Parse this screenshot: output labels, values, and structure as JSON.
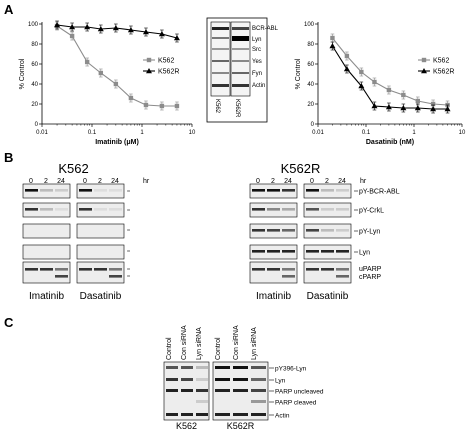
{
  "panel_labels": {
    "a": "A",
    "b": "B",
    "c": "C"
  },
  "chart_data": [
    {
      "type": "line",
      "name": "imatinib-chart",
      "xscale": "log",
      "xlim": [
        0.01,
        10
      ],
      "ylim": [
        0,
        100
      ],
      "xticks": [
        0.01,
        0.1,
        1,
        10
      ],
      "xtick_labels": [
        "0.01",
        "0.1",
        "1",
        "10"
      ],
      "yticks": [
        0,
        20,
        40,
        60,
        80,
        100
      ],
      "ytick_labels": [
        "0",
        "20",
        "40",
        "60",
        "80",
        "100"
      ],
      "ylabel": "% Control",
      "xlabel_main": "Imatinib",
      "xlabel_unit": "(μM)",
      "legend_position": "right",
      "series": [
        {
          "name": "K562",
          "marker": "square",
          "color": "#8c8c8c",
          "x": [
            0.02,
            0.04,
            0.08,
            0.15,
            0.3,
            0.6,
            1.2,
            2.5,
            5
          ],
          "y": [
            98,
            88,
            62,
            51,
            40,
            26,
            19,
            18,
            18
          ]
        },
        {
          "name": "K562R",
          "marker": "triangle",
          "color": "#000000",
          "x": [
            0.02,
            0.04,
            0.08,
            0.15,
            0.3,
            0.6,
            1.2,
            2.5,
            5
          ],
          "y": [
            99,
            97,
            97,
            95,
            96,
            94,
            92,
            90,
            86
          ]
        }
      ]
    },
    {
      "type": "line",
      "name": "dasatinib-chart",
      "xscale": "log",
      "xlim": [
        0.01,
        10
      ],
      "ylim": [
        0,
        100
      ],
      "xticks": [
        0.01,
        0.1,
        1,
        10
      ],
      "xtick_labels": [
        "0.01",
        "0.1",
        "1",
        "10"
      ],
      "yticks": [
        0,
        20,
        40,
        60,
        80,
        100
      ],
      "ytick_labels": [
        "0",
        "20",
        "40",
        "60",
        "80",
        "100"
      ],
      "ylabel": "% Control",
      "xlabel_main": "Dasatinib",
      "xlabel_unit": "(nM)",
      "legend_position": "right",
      "series": [
        {
          "name": "K562",
          "marker": "square",
          "color": "#8c8c8c",
          "x": [
            0.02,
            0.04,
            0.08,
            0.15,
            0.3,
            0.6,
            1.2,
            2.5,
            5
          ],
          "y": [
            86,
            68,
            52,
            42,
            34,
            29,
            23,
            20,
            19
          ]
        },
        {
          "name": "K562R",
          "marker": "triangle",
          "color": "#000000",
          "x": [
            0.02,
            0.04,
            0.08,
            0.15,
            0.3,
            0.6,
            1.2,
            2.5,
            5
          ],
          "y": [
            78,
            55,
            38,
            18,
            17,
            16,
            16,
            15,
            15
          ]
        }
      ]
    }
  ],
  "inset": {
    "labels": [
      "BCR-ABL",
      "Lyn",
      "Src",
      "Yes",
      "Fyn",
      "Actin"
    ],
    "lanes": [
      "K562",
      "K562R"
    ]
  },
  "panel_b": {
    "groups": [
      {
        "title": "K562",
        "drugs": [
          "Imatinib",
          "Dasatinib"
        ],
        "show_labels": false
      },
      {
        "title": "K562R",
        "drugs": [
          "Imatinib",
          "Dasatinib"
        ],
        "show_labels": true
      }
    ],
    "timepoints": [
      "0",
      "2",
      "24"
    ],
    "time_unit": "hr",
    "rows": [
      "pY-BCR-ABL",
      "pY-CrkL",
      "pY-Lyn",
      "Lyn"
    ],
    "parp": [
      "uPARP",
      "cPARP"
    ]
  },
  "panel_c": {
    "lanes": [
      "Control",
      "Con siRNA",
      "Lyn siRNA"
    ],
    "cells": [
      "K562",
      "K562R"
    ],
    "rows": [
      "pY396-Lyn",
      "Lyn",
      "PARP uncleaved",
      "PARP cleaved",
      "Actin"
    ]
  }
}
